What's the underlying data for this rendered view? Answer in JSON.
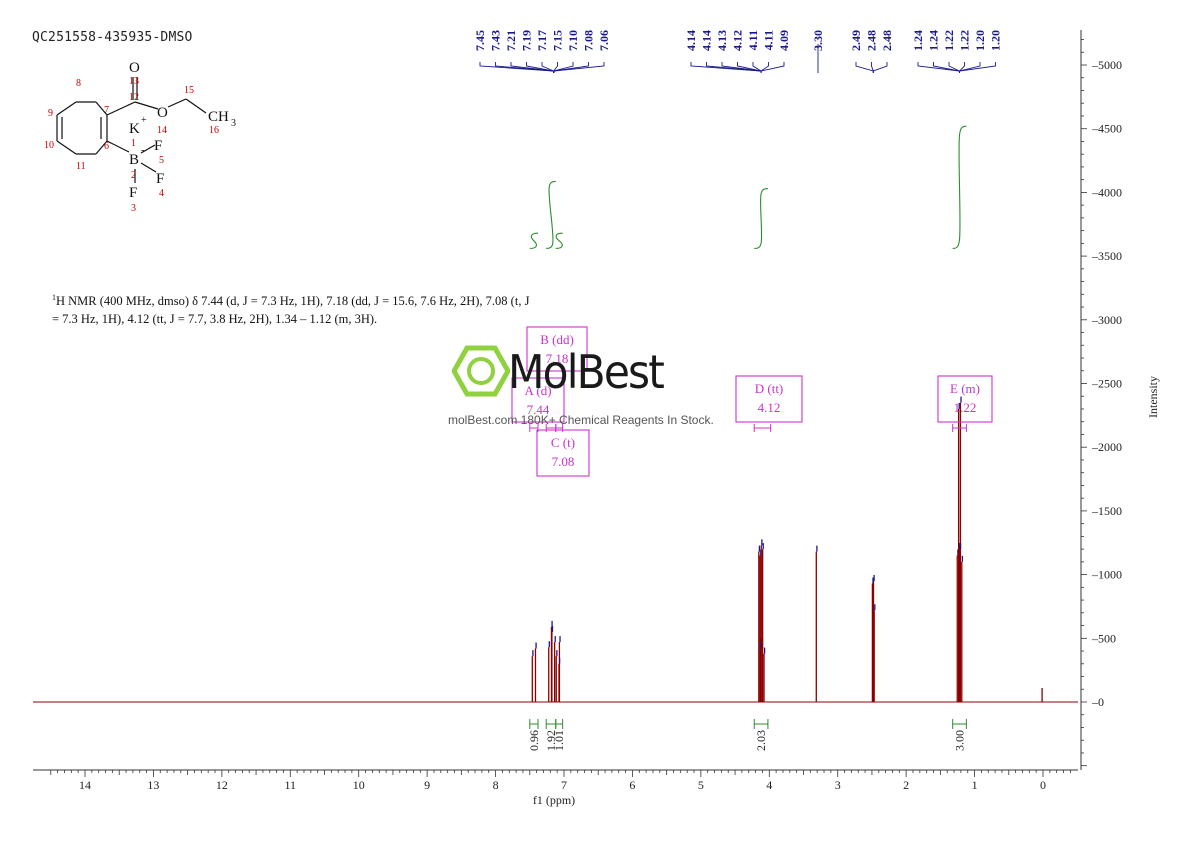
{
  "sample_id": "QC251558-435935-DMSO",
  "description": {
    "text1": "H NMR (400 MHz, dmso) δ 7.44 (d, J = 7.3 Hz, 1H), 7.18 (dd, J = 15.6, 7.6 Hz, 2H), 7.08 (t, J",
    "sup": "1",
    "text2": "= 7.3 Hz, 1H), 4.12 (tt, J = 7.7, 3.8 Hz, 2H), 1.34 – 1.12 (m, 3H)."
  },
  "watermark": {
    "brand": "MolBest",
    "tagline": "molBest.com 180K+ Chemical Reagents In Stock."
  },
  "structure": {
    "atoms": {
      "o_carbonyl": "O",
      "o_ether": "O",
      "k": "K",
      "k_charge": "+",
      "b": "B",
      "b_charge": "-",
      "f5": "F",
      "f4": "F",
      "f3": "F",
      "ch3": "CH",
      "ch3_sub": "3"
    },
    "numbers": [
      "13",
      "12",
      "15",
      "8",
      "7",
      "9",
      "14",
      "16",
      "1",
      "10",
      "6",
      "5",
      "11",
      "2",
      "4",
      "3"
    ]
  },
  "colors": {
    "spectrum": "#8b0000",
    "peak_label": "#1a1a8c",
    "integral": "#2e8b2e",
    "region": "#cc33cc",
    "axis": "#333333",
    "atom_number": "#cc0000"
  },
  "chart_data": {
    "type": "line",
    "title": "",
    "xlabel": "f1 (ppm)",
    "ylabel": "Intensity",
    "xlim": [
      14.8,
      -0.5
    ],
    "ylim": [
      -500,
      5300
    ],
    "x_ticks": [
      14,
      13,
      12,
      11,
      10,
      9,
      8,
      7,
      6,
      5,
      4,
      3,
      2,
      1,
      0
    ],
    "y_ticks": [
      0,
      500,
      1000,
      1500,
      2000,
      2500,
      3000,
      3500,
      4000,
      4500,
      5000
    ],
    "peaks": [
      {
        "ppm": 7.45,
        "height": 360
      },
      {
        "ppm": 7.43,
        "height": 420
      },
      {
        "ppm": 7.21,
        "height": 430
      },
      {
        "ppm": 7.19,
        "height": 550
      },
      {
        "ppm": 7.17,
        "height": 590
      },
      {
        "ppm": 7.15,
        "height": 470
      },
      {
        "ppm": 7.1,
        "height": 360
      },
      {
        "ppm": 7.08,
        "height": 470
      },
      {
        "ppm": 7.06,
        "height": 300
      },
      {
        "ppm": 4.14,
        "height": 450
      },
      {
        "ppm": 4.14,
        "height": 1180
      },
      {
        "ppm": 4.13,
        "height": 1230
      },
      {
        "ppm": 4.12,
        "height": 1150
      },
      {
        "ppm": 4.11,
        "height": 1200
      },
      {
        "ppm": 4.11,
        "height": 420
      },
      {
        "ppm": 4.09,
        "height": 380
      },
      {
        "ppm": 3.3,
        "height": 1180
      },
      {
        "ppm": 2.49,
        "height": 950
      },
      {
        "ppm": 2.48,
        "height": 930
      },
      {
        "ppm": 2.48,
        "height": 720
      },
      {
        "ppm": 1.24,
        "height": 1150
      },
      {
        "ppm": 1.24,
        "height": 1200
      },
      {
        "ppm": 1.22,
        "height": 2300
      },
      {
        "ppm": 1.22,
        "height": 2350
      },
      {
        "ppm": 1.2,
        "height": 1200
      },
      {
        "ppm": 1.2,
        "height": 1100
      },
      {
        "ppm": 0.0,
        "height": 110
      }
    ],
    "peak_labels": {
      "group1": [
        "7.45",
        "7.43",
        "7.21",
        "7.19",
        "7.17",
        "7.15",
        "7.10",
        "7.08",
        "7.06"
      ],
      "group2": [
        "4.14",
        "4.14",
        "4.13",
        "4.12",
        "4.11",
        "4.11",
        "4.09"
      ],
      "group3": [
        "3.30"
      ],
      "group4": [
        "2.49",
        "2.48",
        "2.48"
      ],
      "group5": [
        "1.24",
        "1.24",
        "1.22",
        "1.22",
        "1.20",
        "1.20"
      ]
    },
    "integrals": [
      {
        "from": 7.5,
        "to": 7.38,
        "value": "0.96"
      },
      {
        "from": 7.26,
        "to": 7.12,
        "value": "1.92"
      },
      {
        "from": 7.12,
        "to": 7.02,
        "value": "1.01"
      },
      {
        "from": 4.22,
        "to": 4.02,
        "value": "2.03"
      },
      {
        "from": 1.32,
        "to": 1.12,
        "value": "3.00"
      }
    ],
    "multiplets": [
      {
        "label": "A (d)",
        "shift": "7.44",
        "ppm": 7.44
      },
      {
        "label": "B (dd)",
        "shift": "7.18",
        "ppm": 7.18
      },
      {
        "label": "C (t)",
        "shift": "7.08",
        "ppm": 7.08
      },
      {
        "label": "D (tt)",
        "shift": "4.12",
        "ppm": 4.12
      },
      {
        "label": "E (m)",
        "shift": "1.22",
        "ppm": 1.22
      }
    ]
  }
}
